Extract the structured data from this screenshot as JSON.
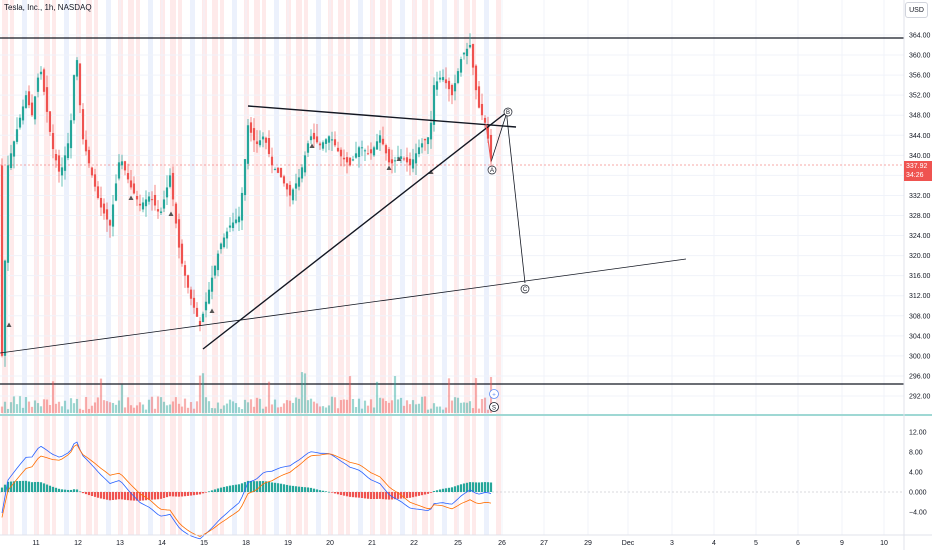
{
  "header": {
    "title": "Tesla, Inc., 1h, NASDAQ",
    "currency": "USD"
  },
  "price_axis": {
    "labels": [
      "364.00",
      "360.00",
      "356.00",
      "352.00",
      "348.00",
      "344.00",
      "340.00",
      "336.00",
      "332.00",
      "328.00",
      "324.00",
      "320.00",
      "316.00",
      "312.00",
      "308.00",
      "304.00",
      "300.00",
      "296.00",
      "292.00"
    ],
    "current_price": "337.92",
    "countdown": "34:26"
  },
  "macd_axis": {
    "labels": [
      "12.00",
      "8.00",
      "4.00",
      "0.000",
      "−4.00"
    ]
  },
  "time_axis": {
    "labels": [
      "11",
      "12",
      "13",
      "14",
      "15",
      "18",
      "19",
      "20",
      "21",
      "22",
      "25",
      "26",
      "27",
      "29",
      "Dec",
      "3",
      "4",
      "5",
      "6",
      "9",
      "10"
    ]
  },
  "wave_labels": [
    "A",
    "B",
    "C"
  ],
  "colors": {
    "up": "#26a69a",
    "down": "#ef5350",
    "macd_line": "#2962ff",
    "signal_line": "#ff6d00",
    "session_red": "#fde3e3",
    "session_blue": "#e5ecfb"
  },
  "chart_data": {
    "type": "candlestick",
    "symbol": "Tesla, Inc.",
    "interval": "1h",
    "exchange": "NASDAQ",
    "y_range": [
      290,
      366
    ],
    "levels": [
      364.4,
      293.4
    ],
    "approx_path": [
      {
        "t": "11",
        "price": 300
      },
      {
        "t": "11",
        "price": 340
      },
      {
        "t": "12",
        "price": 358
      },
      {
        "t": "12",
        "price": 342
      },
      {
        "t": "13",
        "price": 330
      },
      {
        "t": "14",
        "price": 326
      },
      {
        "t": "15",
        "price": 306
      },
      {
        "t": "15",
        "price": 320
      },
      {
        "t": "18",
        "price": 344
      },
      {
        "t": "19",
        "price": 338
      },
      {
        "t": "20",
        "price": 344
      },
      {
        "t": "21",
        "price": 340
      },
      {
        "t": "22",
        "price": 344
      },
      {
        "t": "22",
        "price": 356
      },
      {
        "t": "25",
        "price": 362
      },
      {
        "t": "25",
        "price": 338
      }
    ],
    "projection": [
      {
        "label": "A",
        "price": 337.92
      },
      {
        "label": "B",
        "price": 348
      },
      {
        "label": "C",
        "price": 312
      }
    ]
  }
}
